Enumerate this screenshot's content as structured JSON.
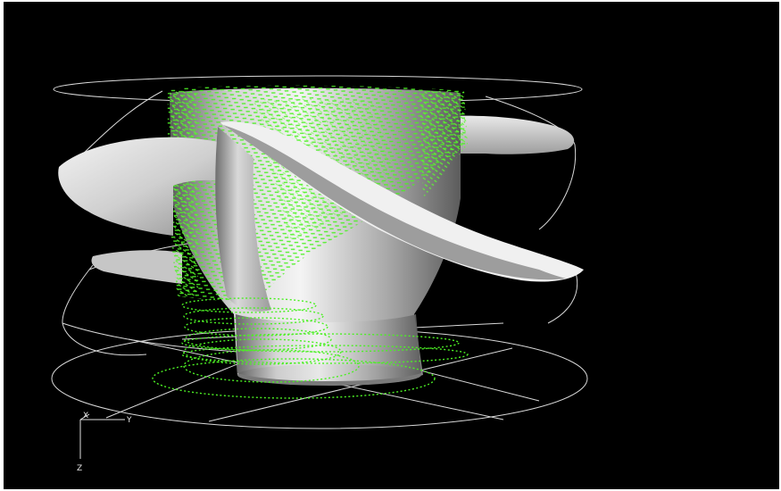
{
  "viewport": {
    "background": "#000000"
  },
  "colors": {
    "wireframe": "#d8d8d8",
    "vectors": "#44ee22",
    "vectors_bright": "#88ff44",
    "surface_light": "#f2f2f2",
    "surface_mid": "#bdbdbd",
    "surface_dark": "#6e6e6e"
  },
  "axes": {
    "x_label": "X",
    "y_label": "Y",
    "z_label": "Z"
  },
  "icons": {
    "triad": "coordinate-triad-icon"
  }
}
